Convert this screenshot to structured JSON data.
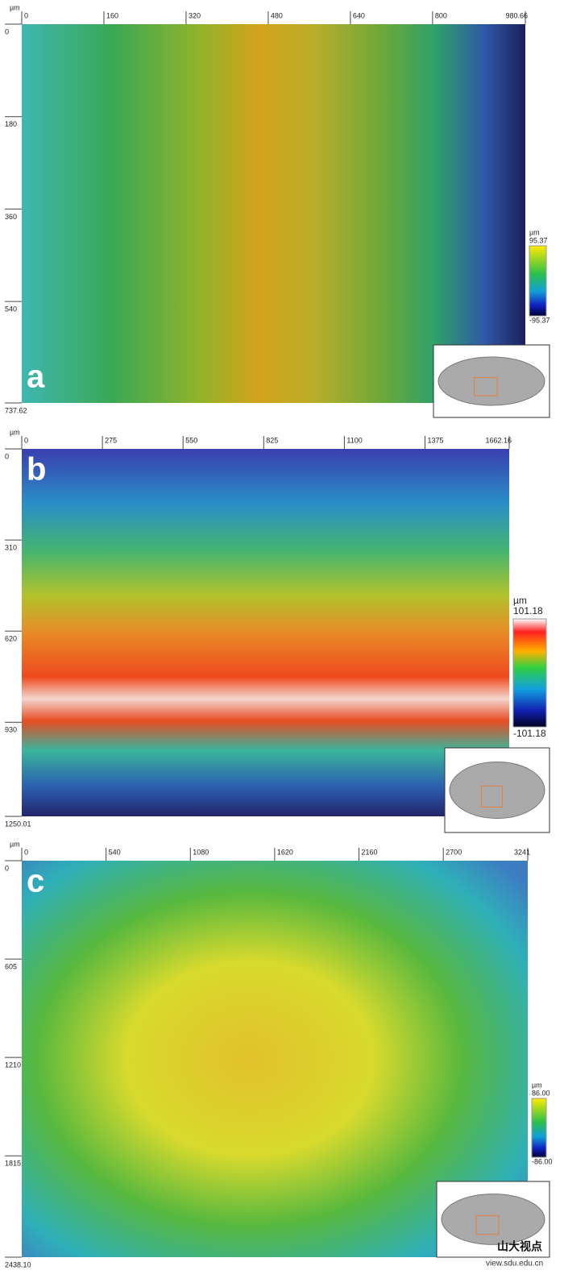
{
  "panels": [
    {
      "label": "a",
      "unit": "µm",
      "xticks": [
        0,
        160,
        320,
        480,
        640,
        800,
        980.66
      ],
      "yticks": [
        0,
        180,
        360,
        540,
        737.62
      ],
      "colorbar": {
        "unit": "µm",
        "max": 95.37,
        "min": -95.37
      }
    },
    {
      "label": "b",
      "unit": "µm",
      "xticks": [
        0,
        275,
        550,
        825,
        1100,
        1375,
        1662.16
      ],
      "yticks": [
        0,
        310,
        620,
        930,
        1250.01
      ],
      "colorbar": {
        "unit": "µm",
        "max": 101.18,
        "min": -101.18
      }
    },
    {
      "label": "c",
      "unit": "µm",
      "xticks": [
        0,
        540,
        1080,
        1620,
        2160,
        2700,
        3241
      ],
      "yticks": [
        0,
        605,
        1210,
        1815,
        {
          "value": 2438.1,
          "label": "2438.10"
        }
      ],
      "colorbar": {
        "unit": "µm",
        "max": {
          "value": 86,
          "label": "86.00"
        },
        "min": {
          "value": -86,
          "label": "-86.00"
        }
      }
    }
  ],
  "watermark": {
    "name": "山大视点",
    "url": "view.sdu.edu.cn"
  }
}
